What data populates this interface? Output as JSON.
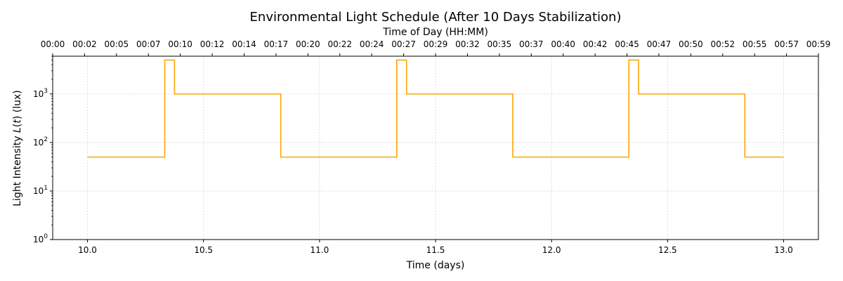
{
  "chart_data": {
    "type": "line",
    "step": true,
    "title": "Environmental Light Schedule (After 10 Days Stabilization)",
    "xlabel": "Time (days)",
    "ylabel": "Light Intensity L(t) (lux)",
    "ylabel_main": "Light Intensity ",
    "ylabel_var": "L",
    "ylabel_open": "(",
    "ylabel_t": "t",
    "ylabel_close": ")",
    "ylabel_unit": " (lux)",
    "top_xlabel": "Time of Day (HH:MM)",
    "xlim": [
      9.85,
      13.15
    ],
    "ylim": [
      1,
      6000
    ],
    "yscale": "log",
    "grid": true,
    "color": "#FFA500",
    "x_ticks": [
      {
        "value": 10.0,
        "label": "10.0"
      },
      {
        "value": 10.5,
        "label": "10.5"
      },
      {
        "value": 11.0,
        "label": "11.0"
      },
      {
        "value": 11.5,
        "label": "11.5"
      },
      {
        "value": 12.0,
        "label": "12.0"
      },
      {
        "value": 12.5,
        "label": "12.5"
      },
      {
        "value": 13.0,
        "label": "13.0"
      }
    ],
    "y_ticks": [
      {
        "value": 1,
        "base": "10",
        "exp": "0"
      },
      {
        "value": 10,
        "base": "10",
        "exp": "1"
      },
      {
        "value": 100,
        "base": "10",
        "exp": "2"
      },
      {
        "value": 1000,
        "base": "10",
        "exp": "3"
      }
    ],
    "top_ticks": [
      "00:00",
      "00:02",
      "00:05",
      "00:07",
      "00:10",
      "00:12",
      "00:14",
      "00:17",
      "00:20",
      "00:22",
      "00:24",
      "00:27",
      "00:29",
      "00:32",
      "00:35",
      "00:37",
      "00:40",
      "00:42",
      "00:45",
      "00:47",
      "00:50",
      "00:52",
      "00:55",
      "00:57",
      "00:59"
    ],
    "x": [
      10.0,
      10.333,
      10.333,
      10.375,
      10.375,
      10.833,
      10.833,
      11.333,
      11.333,
      11.375,
      11.375,
      11.833,
      11.833,
      12.333,
      12.333,
      12.375,
      12.375,
      12.833,
      12.833,
      13.0
    ],
    "y": [
      50,
      50,
      5000,
      5000,
      1000,
      1000,
      50,
      50,
      5000,
      5000,
      1000,
      1000,
      50,
      50,
      5000,
      5000,
      1000,
      1000,
      50,
      50
    ]
  }
}
